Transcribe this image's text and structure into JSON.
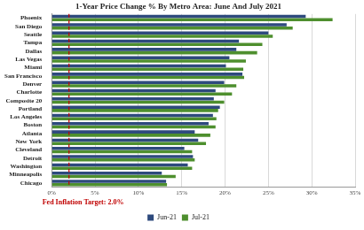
{
  "chart_data": {
    "type": "bar",
    "orientation": "horizontal",
    "title": "1-Year Price Change % By Metro Area: June And July 2021",
    "categories": [
      "Phoenix",
      "San Diego",
      "Seattle",
      "Tampa",
      "Dallas",
      "Las Vegas",
      "Miami",
      "San Francisco",
      "Denver",
      "Charlotte",
      "Composite 20",
      "Portland",
      "Los Angeles",
      "Boston",
      "Atlanta",
      "New York",
      "Cleveland",
      "Detroit",
      "Washington",
      "Minneapolis",
      "Chicago"
    ],
    "series": [
      {
        "name": "Jun-21",
        "color": "#2e4a7d",
        "values": [
          29.3,
          27.1,
          25.0,
          21.6,
          21.3,
          20.5,
          20.1,
          22.0,
          19.9,
          18.9,
          18.7,
          19.4,
          18.6,
          18.1,
          16.5,
          16.9,
          15.3,
          16.3,
          15.7,
          12.7,
          13.2
        ]
      },
      {
        "name": "Jul-21",
        "color": "#4e8f2e",
        "values": [
          32.4,
          27.8,
          25.5,
          24.3,
          23.7,
          22.4,
          22.1,
          22.2,
          21.3,
          20.8,
          19.9,
          19.2,
          19.0,
          18.9,
          18.3,
          17.8,
          16.2,
          16.5,
          16.2,
          14.3,
          13.3
        ]
      }
    ],
    "xlim": [
      0,
      35
    ],
    "xticks": [
      {
        "value": 0,
        "label": "0%"
      },
      {
        "value": 5,
        "label": "5%"
      },
      {
        "value": 10,
        "label": "10%"
      },
      {
        "value": 15,
        "label": "15%"
      },
      {
        "value": 20,
        "label": "20%"
      },
      {
        "value": 25,
        "label": "25%"
      },
      {
        "value": 30,
        "label": "30%"
      },
      {
        "value": 35,
        "label": "35%"
      }
    ],
    "annotations": [
      {
        "text": "Fed Inflation Target: 2.0%",
        "x": 2,
        "color": "#c00000",
        "line_style": "dashed"
      }
    ],
    "grid": true,
    "legend": "bottom"
  }
}
